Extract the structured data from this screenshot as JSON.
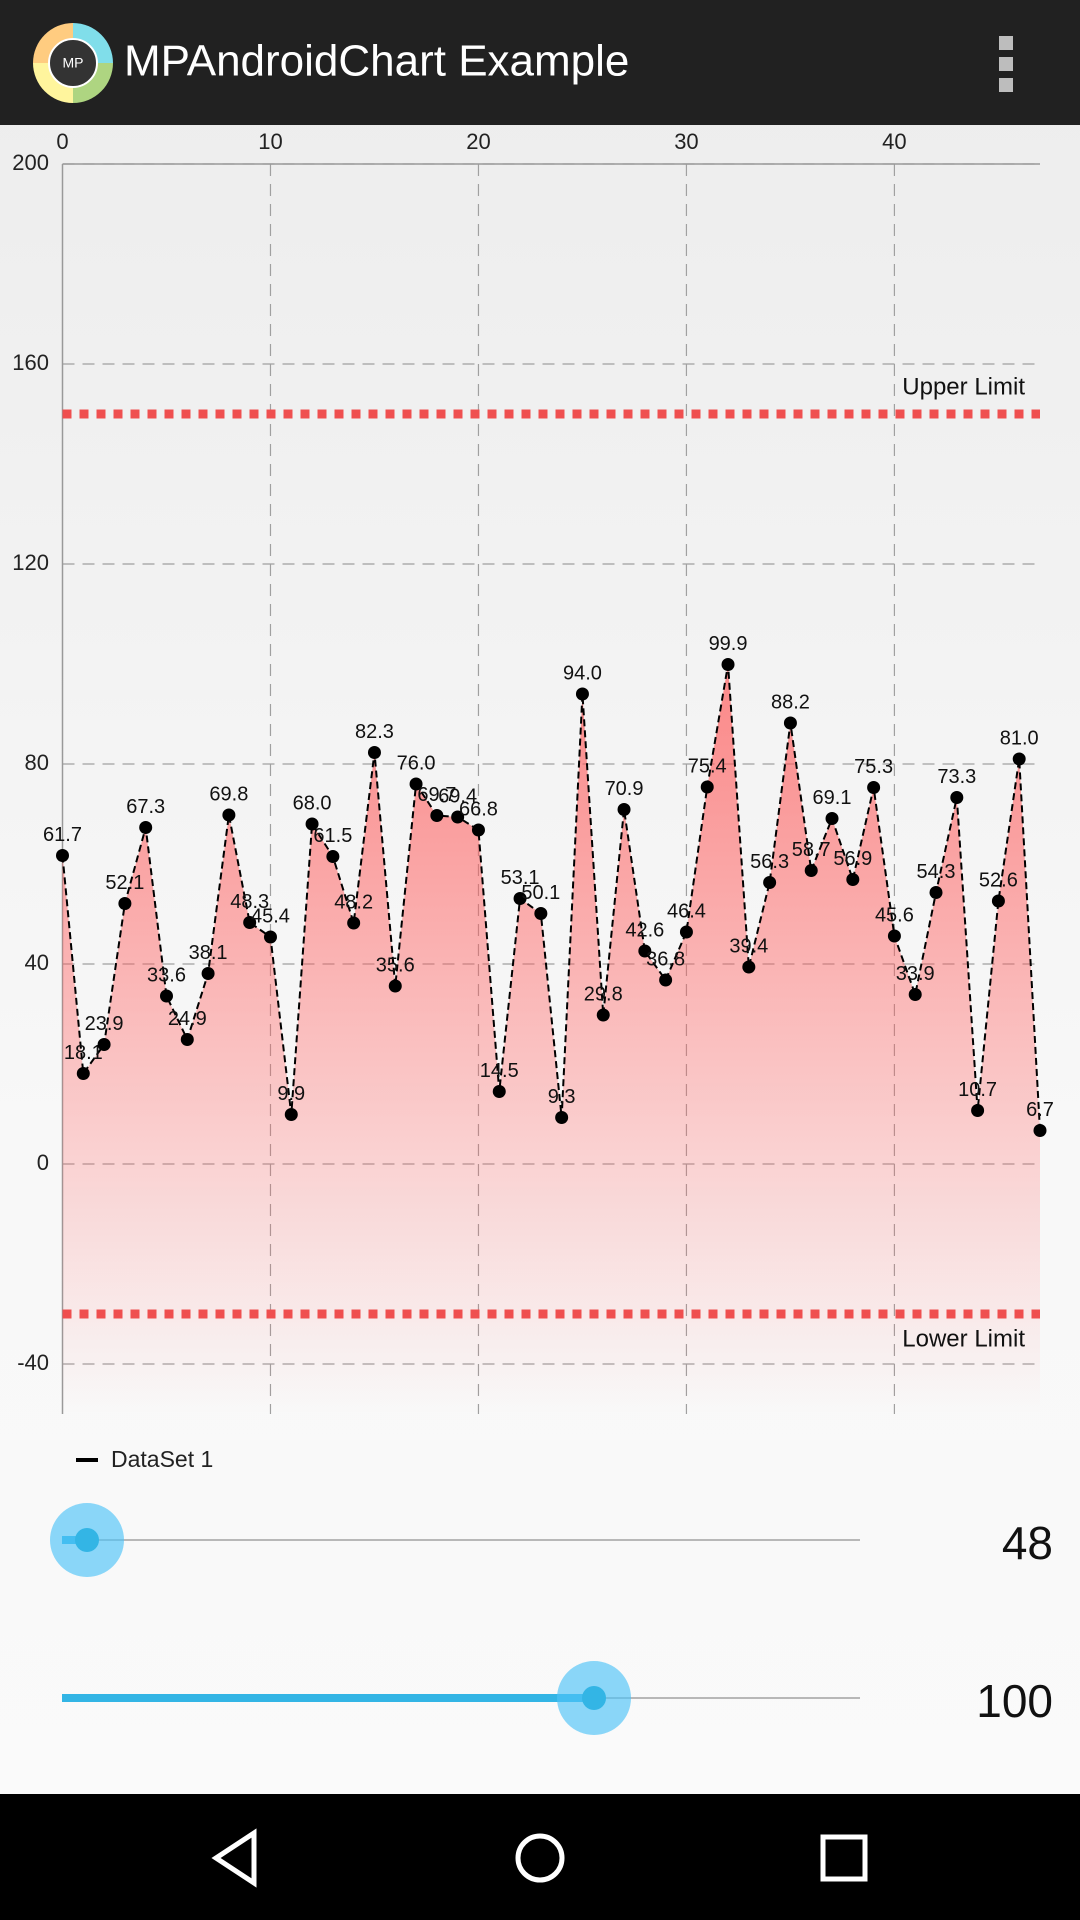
{
  "app_bar": {
    "title": "MPAndroidChart Example",
    "icon_text": "MP"
  },
  "chart_data": {
    "type": "line",
    "x": [
      0,
      1,
      2,
      3,
      4,
      5,
      6,
      7,
      8,
      9,
      10,
      11,
      12,
      13,
      14,
      15,
      16,
      17,
      18,
      19,
      20,
      21,
      22,
      23,
      24,
      25,
      26,
      27,
      28,
      29,
      30,
      31,
      32,
      33,
      34,
      35,
      36,
      37,
      38,
      39,
      40,
      41,
      42,
      43,
      44,
      45,
      46,
      47
    ],
    "series": [
      {
        "name": "DataSet 1",
        "color": "#000000",
        "fill": "#ff5a5a",
        "values": [
          61.7,
          18.1,
          23.9,
          52.1,
          67.3,
          33.6,
          24.9,
          38.1,
          69.8,
          48.3,
          45.4,
          9.9,
          68,
          61.5,
          48.2,
          82.3,
          35.6,
          76,
          69.7,
          69.4,
          66.8,
          14.5,
          53.1,
          50.1,
          9.3,
          94,
          29.8,
          70.9,
          42.6,
          36.8,
          46.4,
          75.4,
          99.9,
          39.4,
          56.3,
          88.2,
          58.7,
          69.1,
          56.9,
          75.3,
          45.6,
          33.9,
          54.3,
          73.3,
          10.7,
          52.6,
          81,
          6.7
        ],
        "value_labels": [
          "61.7",
          "18.1",
          "23.9",
          "52.1",
          "67.3",
          "33.6",
          "24.9",
          "38.1",
          "69.8",
          "48.3",
          "45.4",
          "9.9",
          "68.0",
          "61.5",
          "48.2",
          "82.3",
          "35.6",
          "76.0",
          "69.7",
          "69.4",
          "66.8",
          "14.5",
          "53.1",
          "50.1",
          "9.3",
          "94.0",
          "29.8",
          "70.9",
          "42.6",
          "36.8",
          "46.4",
          "75.4",
          "99.9",
          "39.4",
          "56.3",
          "88.2",
          "58.7",
          "69.1",
          "56.9",
          "75.3",
          "45.6",
          "33.9",
          "54.3",
          "73.3",
          "10.7",
          "52.6",
          "81.0",
          "6.7"
        ]
      }
    ],
    "xlim": [
      0,
      47
    ],
    "xticks": [
      0,
      10,
      20,
      30,
      40
    ],
    "ylim": [
      -50,
      200
    ],
    "yticks": [
      -40,
      0,
      40,
      80,
      120,
      160,
      200
    ],
    "grid": true,
    "limit_lines": [
      {
        "label": "Upper Limit",
        "value": 150,
        "color": "#ef4f4f"
      },
      {
        "label": "Lower Limit",
        "value": -30,
        "color": "#ef4f4f"
      }
    ],
    "legend": "bottom-left"
  },
  "sliders": [
    {
      "value": 48
    },
    {
      "value": 100
    }
  ]
}
